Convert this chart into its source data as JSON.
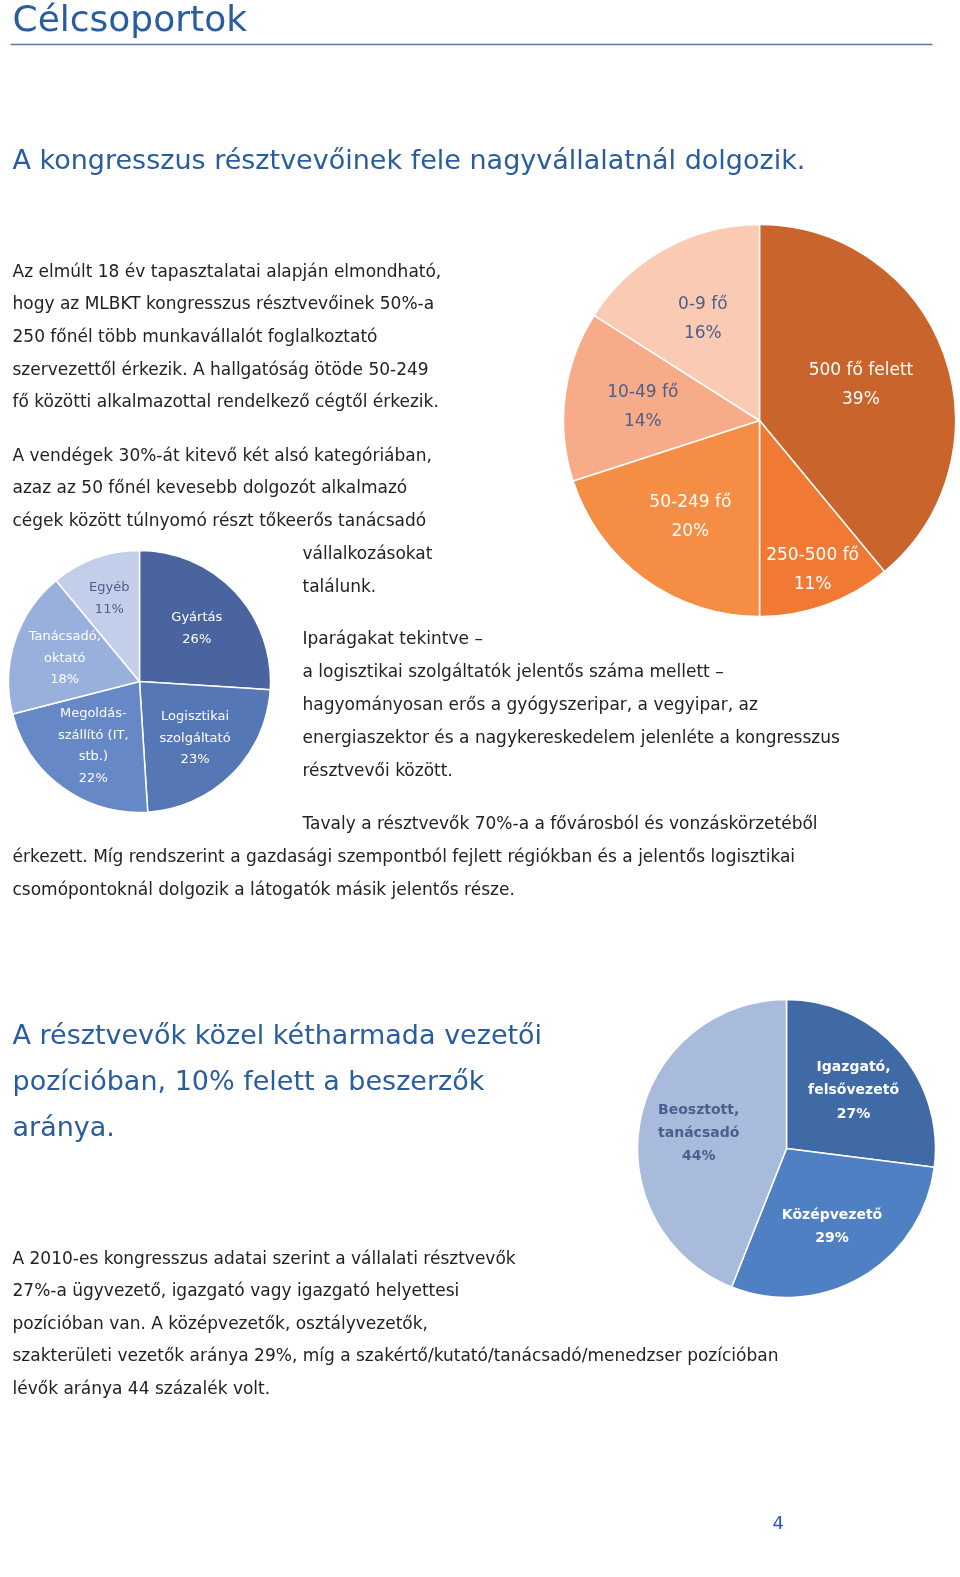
{
  "chart_data": [
    {
      "type": "pie",
      "title": "A kongresszus résztvevőinek fele nagyvállalatnál dolgozik.",
      "categories": [
        "500 fő felett",
        "250-500 fő",
        "50-249 fő",
        "10-49 fő",
        "0-9 fő"
      ],
      "values": [
        39,
        11,
        20,
        14,
        16
      ],
      "value_labels": [
        "39%",
        "11%",
        "20%",
        "14%",
        "16%"
      ],
      "colors": [
        "#c8642c",
        "#f07a34",
        "#f58d45",
        "#f8ab88",
        "#fbcab2"
      ],
      "annotations": [
        "Célcsoportok",
        "Az elmúlt 18 év tapasztalatai alapján elmondható,",
        "hogy az MLBKT kongresszus résztvevőinek 50%-a",
        "250 főnél több munkavállalót foglalkoztató",
        "szervezettől érkezik. A hallgatóság ötöde 50-249",
        "fő közötti alkalmazottal rendelkező cégtől érkezik.",
        "A vendégek 30%-át kitevő két alsó kategóriában,",
        "azaz az 50 főnél kevesebb dolgozót alkalmazó",
        "cégek között túlnyomó részt tőkeerős tanácsadó",
        "vállalkozásokat",
        "találunk."
      ]
    },
    {
      "type": "pie",
      "categories": [
        "Gyártás",
        "Logisztikai szolgáltató",
        "Megoldás-szállító (IT, stb.)",
        "Tanácsadó, oktató",
        "Egyéb"
      ],
      "values": [
        26,
        23,
        22,
        18,
        11
      ],
      "value_labels": [
        "26%",
        "23%",
        "22%",
        "18%",
        "11%"
      ],
      "colors": [
        "#4a64a0",
        "#5577b6",
        "#6688c6",
        "#9ab0dc",
        "#c3cfea"
      ],
      "annotations": [
        "Iparágakat tekintve –",
        "a logisztikai szolgáltatók jelentős száma mellett –",
        "hagyományosan erős a gyógyszeripar, a vegyipar, az",
        "energiaszektor és a nagykereskedelem jelenléte a kongresszus",
        "résztvevői között.",
        "Tavaly a résztvevők 70%-a a fővárosból és vonzáskörzetéből",
        "érkezett. Míg rendszerint a gazdasági szempontból fejlett régiókban és a jelentős logisztikai",
        "csomópontoknál dolgozik a látogatók másik jelentős része."
      ]
    },
    {
      "type": "pie",
      "title": "A résztvevők közel kétharmada vezetői pozícióban, 10% felett a beszerzők aránya.",
      "categories": [
        "Igazgató, felsővezető",
        "Középvezető",
        "Beosztott, tanácsadó"
      ],
      "values": [
        27,
        29,
        44
      ],
      "value_labels": [
        "27%",
        "29%",
        "44%"
      ],
      "colors": [
        "#3f6aa6",
        "#4f80c4",
        "#a9bbdc"
      ],
      "annotations": [
        "A 2010-es kongresszus adatai szerint a vállalati résztvevők",
        "27%-a ügyvezető, igazgató vagy igazgató helyettesi",
        "pozícióban van. A középvezetők, osztályvezetők,",
        "szakterületi vezetők aránya 29%, míg a szakértő/kutató/tanácsadó/menedzser pozícióban",
        "lévők aránya 44 százalék volt.",
        "4"
      ]
    }
  ]
}
